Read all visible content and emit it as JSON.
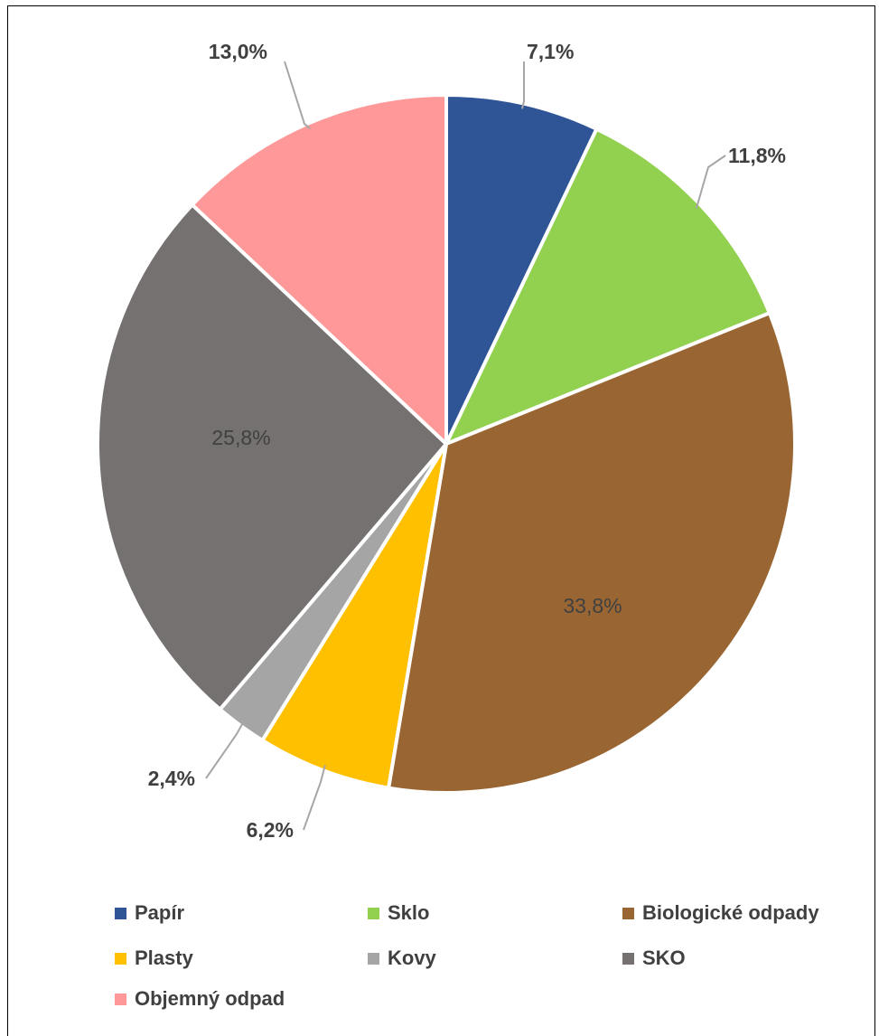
{
  "chart_data": {
    "type": "pie",
    "title": "",
    "start_angle_deg": 0,
    "direction": "clockwise",
    "legend_position": "bottom",
    "slices": [
      {
        "name": "Papír",
        "value": 7.1,
        "label": "7,1%",
        "color": "#2F5597",
        "label_placement": "outside"
      },
      {
        "name": "Sklo",
        "value": 11.8,
        "label": "11,8%",
        "color": "#92D050",
        "label_placement": "outside"
      },
      {
        "name": "Biologické odpady",
        "value": 33.8,
        "label": "33,8%",
        "color": "#996633",
        "label_placement": "inside"
      },
      {
        "name": "Plasty",
        "value": 6.2,
        "label": "6,2%",
        "color": "#FFC000",
        "label_placement": "outside"
      },
      {
        "name": "Kovy",
        "value": 2.4,
        "label": "2,4%",
        "color": "#A5A5A5",
        "label_placement": "outside"
      },
      {
        "name": "SKO",
        "value": 25.8,
        "label": "25,8%",
        "color": "#767171",
        "label_placement": "inside"
      },
      {
        "name": "Objemný odpad",
        "value": 13.0,
        "label": "13,0%",
        "color": "#FF9999",
        "label_placement": "outside"
      }
    ]
  }
}
